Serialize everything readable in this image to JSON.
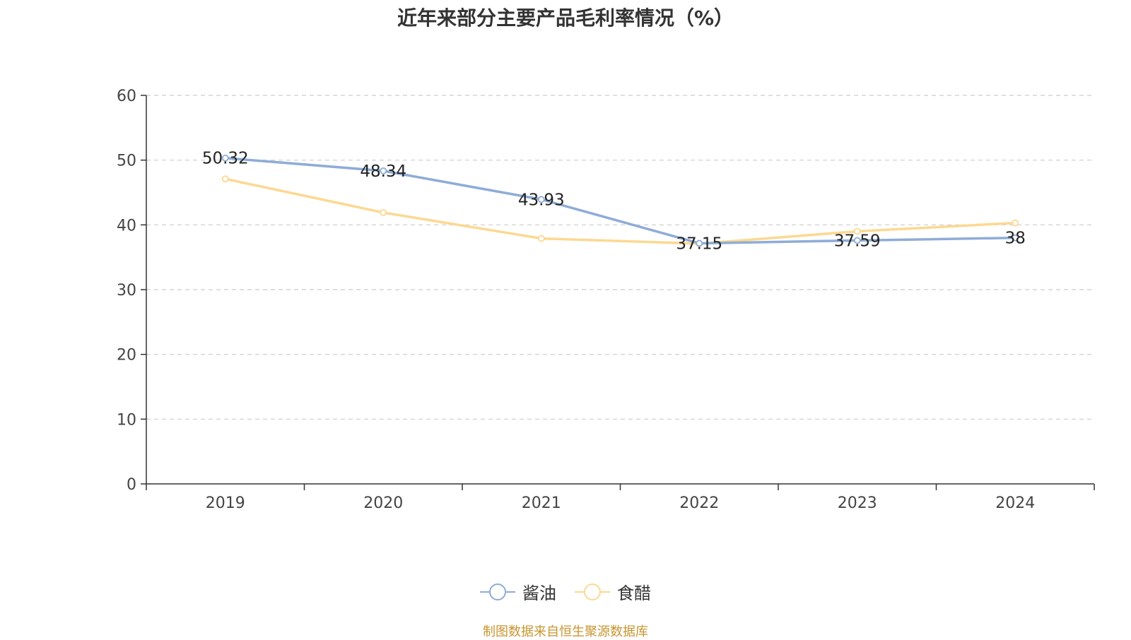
{
  "chart_data": {
    "type": "line",
    "title": "近年来部分主要产品毛利率情况（%）",
    "categories": [
      "2019",
      "2020",
      "2021",
      "2022",
      "2023",
      "2024"
    ],
    "series": [
      {
        "name": "酱油",
        "color": "#8eacd8",
        "values": [
          50.32,
          48.34,
          43.93,
          37.15,
          37.59,
          38
        ],
        "labels_shown": true
      },
      {
        "name": "食醋",
        "color": "#fcd891",
        "values": [
          47.1,
          41.9,
          37.9,
          37.1,
          39.0,
          40.3
        ],
        "labels_shown": false
      }
    ],
    "ylim": [
      0,
      60
    ],
    "yticks": [
      0,
      10,
      20,
      30,
      40,
      50,
      60
    ],
    "xlabel": "",
    "ylabel": "",
    "grid": true,
    "legend_position": "bottom-center"
  },
  "source": "制图数据来自恒生聚源数据库"
}
